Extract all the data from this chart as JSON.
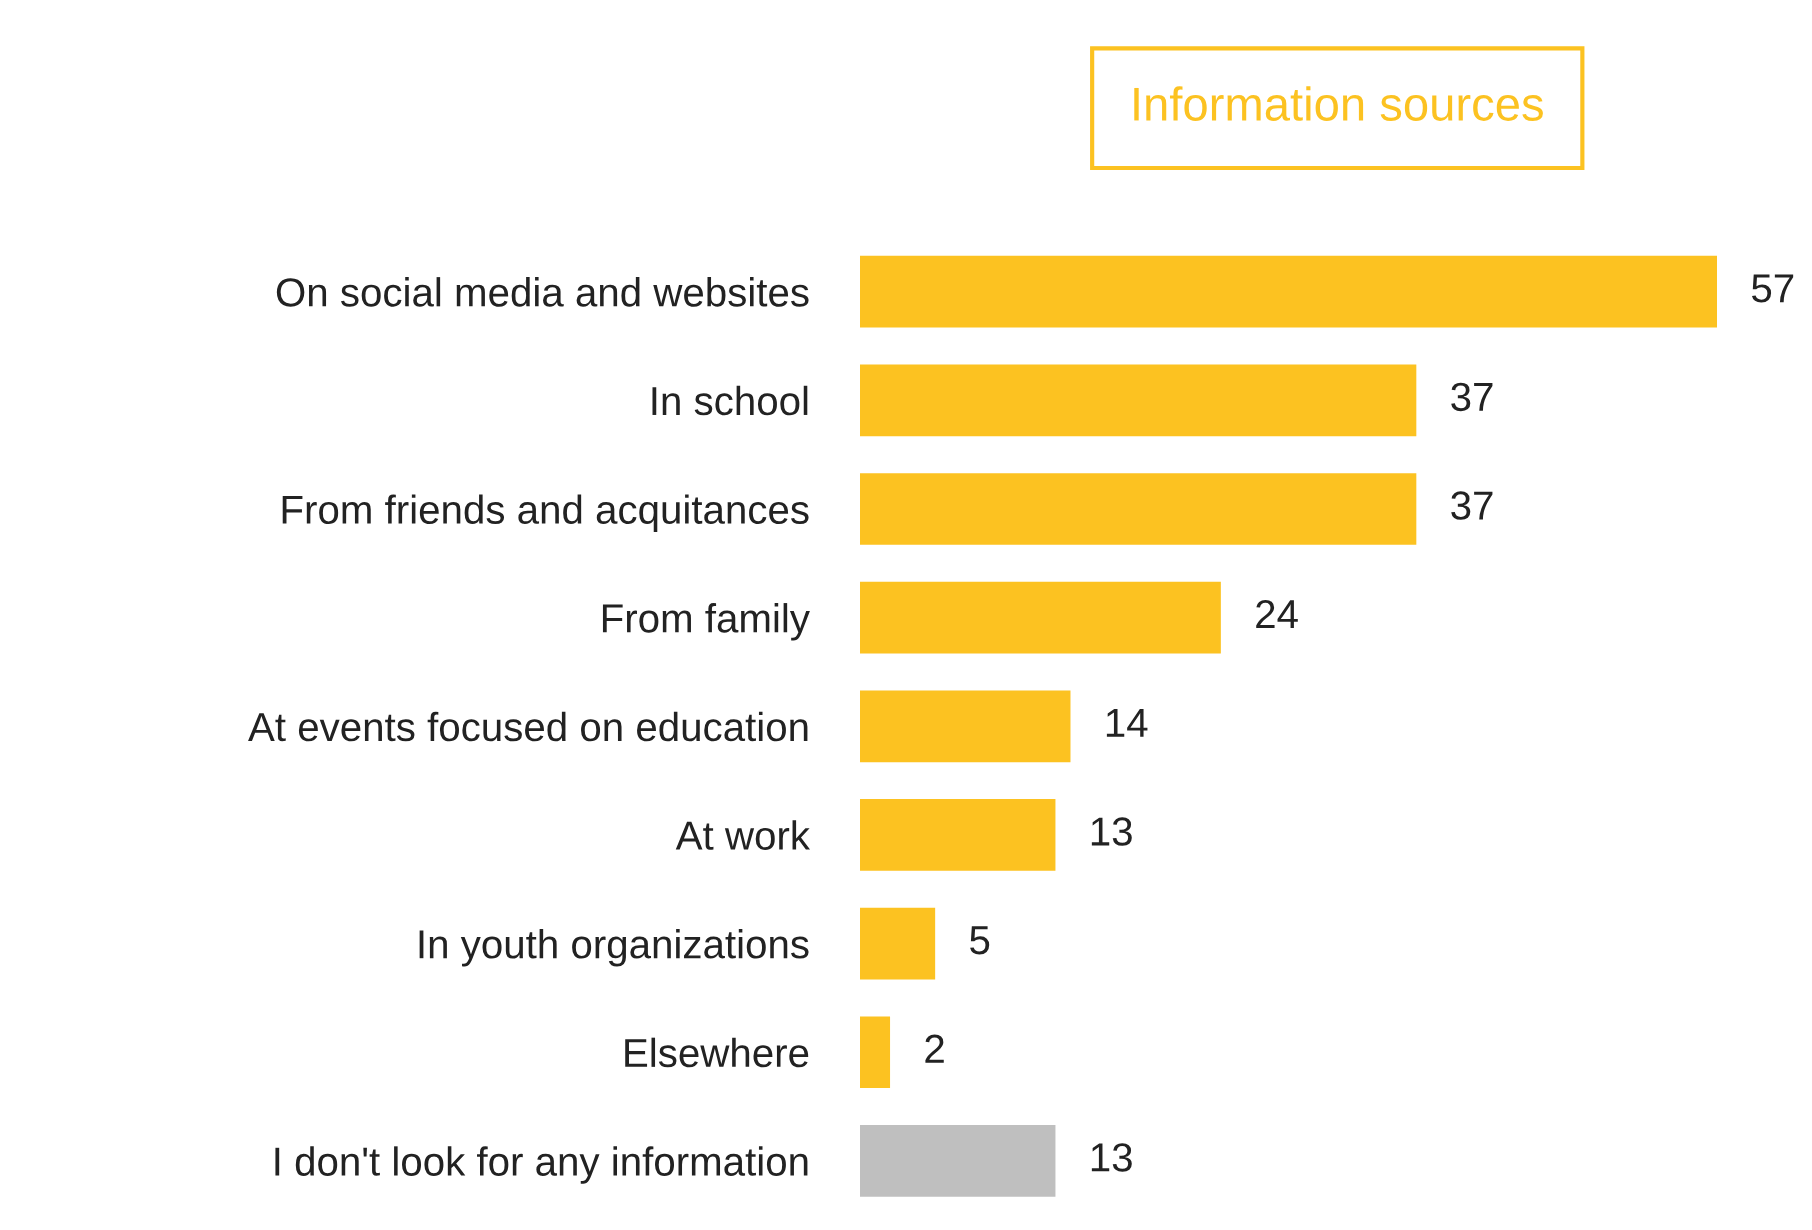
{
  "chart_data": {
    "type": "bar",
    "orientation": "horizontal",
    "title": "Information sources",
    "categories": [
      "On social media and websites",
      "In school",
      "From friends and acquitances",
      "From family",
      "At events focused on education",
      "At work",
      "In youth organizations",
      "Elsewhere",
      "I don't look for any information"
    ],
    "values": [
      57,
      37,
      37,
      24,
      14,
      13,
      5,
      2,
      13
    ],
    "colors": [
      "#fcc221",
      "#fcc221",
      "#fcc221",
      "#fcc221",
      "#fcc221",
      "#fcc221",
      "#fcc221",
      "#fcc221",
      "#bfbfbf"
    ],
    "data_labels": true,
    "grid": false,
    "legend": false
  }
}
